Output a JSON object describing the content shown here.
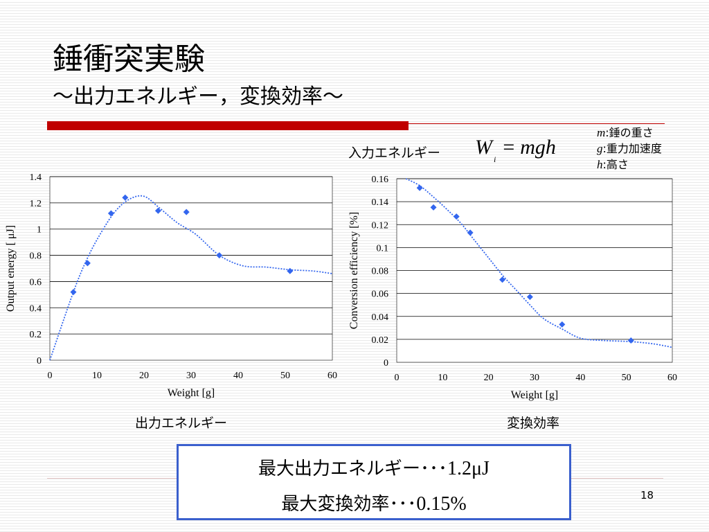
{
  "slide": {
    "title": "錘衝突実験",
    "subtitle": "～出力エネルギー，変換効率～",
    "formula_label": "入力エネルギー",
    "formula": {
      "lhs": "W",
      "lhs_sub": "i",
      "eq": "=",
      "rhs": "mgh"
    },
    "variables": [
      {
        "symbol": "m",
        "desc": ":錘の重さ"
      },
      {
        "symbol": "g",
        "desc": ":重力加速度"
      },
      {
        "symbol": "h",
        "desc": ":高さ"
      }
    ],
    "summary": {
      "line1_text": "最大出力エネルギー･･･",
      "line1_value": "1.2μJ",
      "line2_text": "最大変換効率･･･",
      "line2_value": "0.15%"
    },
    "page_number": "18",
    "colors": {
      "accent_red": "#c00000",
      "marker_blue": "#3366ee",
      "box_border": "#3a5fcd"
    }
  },
  "chart_data": [
    {
      "type": "scatter",
      "caption": "出力エネルギー",
      "xlabel": "Weight [g]",
      "ylabel": "Output energy [ μJ]",
      "xlim": [
        0,
        60
      ],
      "ylim": [
        0,
        1.4
      ],
      "xticks": [
        "0",
        "10",
        "20",
        "30",
        "40",
        "50",
        "60"
      ],
      "yticks": [
        "0",
        "0.2",
        "0.4",
        "0.6",
        "0.8",
        "1",
        "1.2",
        "1.4"
      ],
      "grid": true,
      "points": [
        {
          "x": 5,
          "y": 0.52
        },
        {
          "x": 8,
          "y": 0.74
        },
        {
          "x": 13,
          "y": 1.12
        },
        {
          "x": 16,
          "y": 1.24
        },
        {
          "x": 23,
          "y": 1.14
        },
        {
          "x": 29,
          "y": 1.13
        },
        {
          "x": 36,
          "y": 0.8
        },
        {
          "x": 51,
          "y": 0.68
        }
      ],
      "trend": [
        {
          "x": 0,
          "y": 0
        },
        {
          "x": 5,
          "y": 0.52
        },
        {
          "x": 8,
          "y": 0.78
        },
        {
          "x": 11,
          "y": 0.98
        },
        {
          "x": 14,
          "y": 1.14
        },
        {
          "x": 17,
          "y": 1.23
        },
        {
          "x": 20,
          "y": 1.25
        },
        {
          "x": 23,
          "y": 1.17
        },
        {
          "x": 27,
          "y": 1.05
        },
        {
          "x": 31,
          "y": 0.96
        },
        {
          "x": 36,
          "y": 0.8
        },
        {
          "x": 41,
          "y": 0.72
        },
        {
          "x": 46,
          "y": 0.71
        },
        {
          "x": 51,
          "y": 0.69
        },
        {
          "x": 56,
          "y": 0.68
        },
        {
          "x": 60,
          "y": 0.66
        }
      ]
    },
    {
      "type": "scatter",
      "caption": "変換効率",
      "xlabel": "Weight [g]",
      "ylabel": "Conversion efficiency [%]",
      "xlim": [
        0,
        60
      ],
      "ylim": [
        0,
        0.16
      ],
      "xticks": [
        "0",
        "10",
        "20",
        "30",
        "40",
        "50",
        "60"
      ],
      "yticks": [
        "0",
        "0.02",
        "0.04",
        "0.06",
        "0.08",
        "0.1",
        "0.12",
        "0.14",
        "0.16"
      ],
      "grid": true,
      "points": [
        {
          "x": 5,
          "y": 0.152
        },
        {
          "x": 8,
          "y": 0.135
        },
        {
          "x": 13,
          "y": 0.127
        },
        {
          "x": 16,
          "y": 0.113
        },
        {
          "x": 23,
          "y": 0.072
        },
        {
          "x": 29,
          "y": 0.057
        },
        {
          "x": 36,
          "y": 0.033
        },
        {
          "x": 51,
          "y": 0.019
        }
      ],
      "trend": [
        {
          "x": 2,
          "y": 0.16
        },
        {
          "x": 5,
          "y": 0.154
        },
        {
          "x": 8,
          "y": 0.144
        },
        {
          "x": 11,
          "y": 0.133
        },
        {
          "x": 14,
          "y": 0.121
        },
        {
          "x": 17,
          "y": 0.106
        },
        {
          "x": 20,
          "y": 0.091
        },
        {
          "x": 23,
          "y": 0.076
        },
        {
          "x": 26,
          "y": 0.063
        },
        {
          "x": 29,
          "y": 0.05
        },
        {
          "x": 32,
          "y": 0.038
        },
        {
          "x": 36,
          "y": 0.029
        },
        {
          "x": 40,
          "y": 0.021
        },
        {
          "x": 45,
          "y": 0.019
        },
        {
          "x": 51,
          "y": 0.018
        },
        {
          "x": 56,
          "y": 0.016
        },
        {
          "x": 60,
          "y": 0.013
        }
      ]
    }
  ]
}
